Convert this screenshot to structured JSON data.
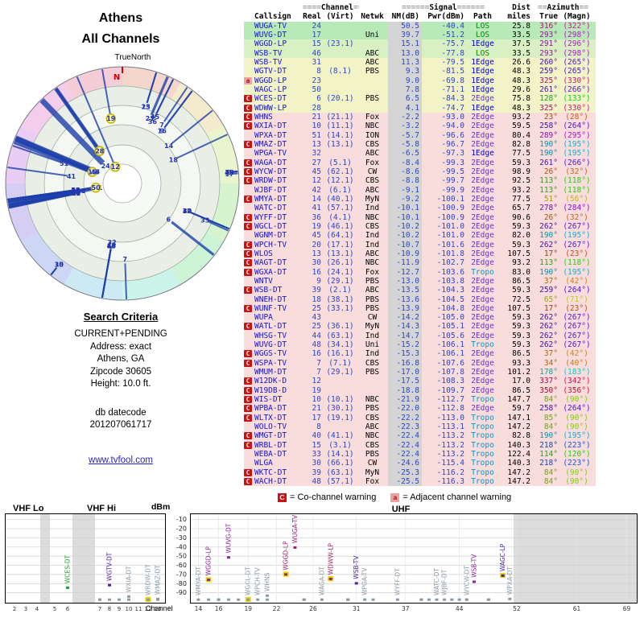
{
  "title": {
    "line1": "Athens",
    "line2": "All Channels"
  },
  "radar": {
    "true_north_label": "TrueNorth",
    "north_label": "N"
  },
  "search_criteria": {
    "heading": "Search Criteria",
    "lines": [
      "CURRENT+PENDING",
      "Address: exact",
      "Athens, GA",
      "Zipcode 30605",
      "Height: 10.0 ft."
    ]
  },
  "datecode": {
    "label": "db datecode",
    "value": "201207061717"
  },
  "link": "www.tvfool.com",
  "table": {
    "header": {
      "group_channel": "Channel",
      "channel_eq": "====",
      "group_signal": "Signal",
      "signal_eq": "======",
      "group_dist": "Dist",
      "group_azimuth": "Azimuth",
      "azimuth_eq": "==",
      "col_callsign": "Callsign",
      "col_real": "Real",
      "col_virt": "(Virt)",
      "col_netwk": "Netwk",
      "col_nm": "NM(dB)",
      "col_pwr": "Pwr(dBm)",
      "col_path": "Path",
      "col_miles": "miles",
      "col_true": "True",
      "col_magn": "(Magn)"
    }
  },
  "stations": [
    {
      "warn": "",
      "callsign": "WUGA-TV",
      "real": 24,
      "virt": "",
      "netwk": "",
      "nm": 50.5,
      "pwr": -40.4,
      "path": "LOS",
      "miles": 25.8,
      "az_true": 316,
      "az_magn": 322
    },
    {
      "warn": "",
      "callsign": "WUVG-DT",
      "real": 17,
      "virt": "",
      "netwk": "Uni",
      "nm": 39.7,
      "pwr": -51.2,
      "path": "LOS",
      "miles": 33.5,
      "az_true": 293,
      "az_magn": 298
    },
    {
      "warn": "",
      "callsign": "WGGD-LP",
      "real": 15,
      "virt": "23.1",
      "netwk": "",
      "nm": 15.1,
      "pwr": -75.7,
      "path": "1Edge",
      "miles": 37.5,
      "az_true": 291,
      "az_magn": 296
    },
    {
      "warn": "",
      "callsign": "WSB-TV",
      "real": 46,
      "virt": "",
      "netwk": "ABC",
      "nm": 13.0,
      "pwr": -77.8,
      "path": "LOS",
      "miles": 33.5,
      "az_true": 293,
      "az_magn": 298
    },
    {
      "warn": "",
      "callsign": "WSB-TV",
      "real": 31,
      "virt": "",
      "netwk": "ABC",
      "nm": 11.3,
      "pwr": -79.5,
      "path": "1Edge",
      "miles": 26.6,
      "az_true": 260,
      "az_magn": 265
    },
    {
      "warn": "",
      "callsign": "WGTV-DT",
      "real": 8,
      "virt": "8.1",
      "netwk": "PBS",
      "nm": 9.3,
      "pwr": -81.5,
      "path": "1Edge",
      "miles": 48.3,
      "az_true": 259,
      "az_magn": 265
    },
    {
      "warn": "a",
      "callsign": "WGGD-LP",
      "real": 23,
      "virt": "",
      "netwk": "",
      "nm": 9.0,
      "pwr": -69.8,
      "path": "1Edge",
      "miles": 48.3,
      "az_true": 325,
      "az_magn": 330
    },
    {
      "warn": "",
      "callsign": "WAGC-LP",
      "real": 50,
      "virt": "",
      "netwk": "",
      "nm": 7.8,
      "pwr": -71.1,
      "path": "1Edge",
      "miles": 29.6,
      "az_true": 261,
      "az_magn": 266
    },
    {
      "warn": "C",
      "callsign": "WCES-DT",
      "real": 6,
      "virt": "20.1",
      "netwk": "PBS",
      "nm": 6.5,
      "pwr": -84.3,
      "path": "2Edge",
      "miles": 75.8,
      "az_true": 128,
      "az_magn": 133
    },
    {
      "warn": "C",
      "callsign": "WDWW-LP",
      "real": 28,
      "virt": "",
      "netwk": "",
      "nm": 4.1,
      "pwr": -74.7,
      "path": "1Edge",
      "miles": 48.3,
      "az_true": 325,
      "az_magn": 330
    },
    {
      "warn": "C",
      "callsign": "WHNS",
      "real": 21,
      "virt": "21.1",
      "netwk": "Fox",
      "nm": -2.2,
      "pwr": -93.0,
      "path": "2Edge",
      "miles": 93.2,
      "az_true": 23,
      "az_magn": 28
    },
    {
      "warn": "C",
      "callsign": "WXIA-DT",
      "real": 10,
      "virt": "11.1",
      "netwk": "NBC",
      "nm": -3.2,
      "pwr": -94.0,
      "path": "2Edge",
      "miles": 59.5,
      "az_true": 258,
      "az_magn": 264
    },
    {
      "warn": "",
      "callsign": "WPXA-DT",
      "real": 51,
      "virt": "14.1",
      "netwk": "ION",
      "nm": -5.7,
      "pwr": -96.6,
      "path": "2Edge",
      "miles": 80.4,
      "az_true": 289,
      "az_magn": 295
    },
    {
      "warn": "C",
      "callsign": "WMAZ-DT",
      "real": 13,
      "virt": "13.1",
      "netwk": "CBS",
      "nm": -5.8,
      "pwr": -96.7,
      "path": "2Edge",
      "miles": 82.8,
      "az_true": 190,
      "az_magn": 195
    },
    {
      "warn": "",
      "callsign": "WPGA-TV",
      "real": 32,
      "virt": "",
      "netwk": "ABC",
      "nm": -6.5,
      "pwr": -97.3,
      "path": "1Edge",
      "miles": 77.5,
      "az_true": 190,
      "az_magn": 195
    },
    {
      "warn": "C",
      "callsign": "WAGA-DT",
      "real": 27,
      "virt": "5.1",
      "netwk": "Fox",
      "nm": -8.4,
      "pwr": -99.3,
      "path": "2Edge",
      "miles": 59.3,
      "az_true": 261,
      "az_magn": 266
    },
    {
      "warn": "C",
      "callsign": "WYCW-DT",
      "real": 45,
      "virt": "62.1",
      "netwk": "CW",
      "nm": -8.6,
      "pwr": -99.5,
      "path": "2Edge",
      "miles": 98.9,
      "az_true": 26,
      "az_magn": 32
    },
    {
      "warn": "C",
      "callsign": "WRDW-DT",
      "real": 12,
      "virt": "12.1",
      "netwk": "CBS",
      "nm": -8.8,
      "pwr": -99.7,
      "path": "2Edge",
      "miles": 92.5,
      "az_true": 113,
      "az_magn": 118
    },
    {
      "warn": "",
      "callsign": "WJBF-DT",
      "real": 42,
      "virt": "6.1",
      "netwk": "ABC",
      "nm": -9.1,
      "pwr": -99.9,
      "path": "2Edge",
      "miles": 93.2,
      "az_true": 113,
      "az_magn": 118
    },
    {
      "warn": "C",
      "callsign": "WMYA-DT",
      "real": 14,
      "virt": "40.1",
      "netwk": "MyN",
      "nm": -9.2,
      "pwr": -100.1,
      "path": "2Edge",
      "miles": 77.5,
      "az_true": 51,
      "az_magn": 56
    },
    {
      "warn": "",
      "callsign": "WATC-DT",
      "real": 41,
      "virt": "57.1",
      "netwk": "Ind",
      "nm": -10.1,
      "pwr": -100.9,
      "path": "2Edge",
      "miles": 65.7,
      "az_true": 278,
      "az_magn": 284
    },
    {
      "warn": "C",
      "callsign": "WYFF-DT",
      "real": 36,
      "virt": "4.1",
      "netwk": "NBC",
      "nm": -10.1,
      "pwr": -100.9,
      "path": "2Edge",
      "miles": 90.6,
      "az_true": 26,
      "az_magn": 32
    },
    {
      "warn": "C",
      "callsign": "WGCL-DT",
      "real": 19,
      "virt": "46.1",
      "netwk": "CBS",
      "nm": -10.2,
      "pwr": -101.0,
      "path": "2Edge",
      "miles": 59.3,
      "az_true": 262,
      "az_magn": 267
    },
    {
      "warn": "",
      "callsign": "WGNM-DT",
      "real": 45,
      "virt": "64.1",
      "netwk": "Ind",
      "nm": -10.2,
      "pwr": -101.0,
      "path": "2Edge",
      "miles": 82.0,
      "az_true": 190,
      "az_magn": 195
    },
    {
      "warn": "C",
      "callsign": "WPCH-TV",
      "real": 20,
      "virt": "17.1",
      "netwk": "Ind",
      "nm": -10.7,
      "pwr": -101.6,
      "path": "2Edge",
      "miles": 59.3,
      "az_true": 262,
      "az_magn": 267
    },
    {
      "warn": "C",
      "callsign": "WLOS",
      "real": 13,
      "virt": "13.1",
      "netwk": "ABC",
      "nm": -10.9,
      "pwr": -101.8,
      "path": "2Edge",
      "miles": 107.5,
      "az_true": 17,
      "az_magn": 23
    },
    {
      "warn": "C",
      "callsign": "WAGT-DT",
      "real": 30,
      "virt": "26.1",
      "netwk": "NBC",
      "nm": -11.9,
      "pwr": -102.7,
      "path": "2Edge",
      "miles": 93.2,
      "az_true": 113,
      "az_magn": 118
    },
    {
      "warn": "C",
      "callsign": "WGXA-DT",
      "real": 16,
      "virt": "24.1",
      "netwk": "Fox",
      "nm": -12.7,
      "pwr": -103.6,
      "path": "Tropo",
      "miles": 83.0,
      "az_true": 190,
      "az_magn": 195
    },
    {
      "warn": "",
      "callsign": "WNTV",
      "real": 9,
      "virt": "29.1",
      "netwk": "PBS",
      "nm": -13.0,
      "pwr": -103.8,
      "path": "2Edge",
      "miles": 86.5,
      "az_true": 37,
      "az_magn": 42
    },
    {
      "warn": "C",
      "callsign": "WSB-DT",
      "real": 39,
      "virt": "2.1",
      "netwk": "ABC",
      "nm": -13.5,
      "pwr": -104.3,
      "path": "2Edge",
      "miles": 59.3,
      "az_true": 259,
      "az_magn": 264
    },
    {
      "warn": "",
      "callsign": "WNEH-DT",
      "real": 18,
      "virt": "38.1",
      "netwk": "PBS",
      "nm": -13.6,
      "pwr": -104.5,
      "path": "2Edge",
      "miles": 72.5,
      "az_true": 65,
      "az_magn": 71
    },
    {
      "warn": "C",
      "callsign": "WUNF-TV",
      "real": 25,
      "virt": "33.1",
      "netwk": "PBS",
      "nm": -13.9,
      "pwr": -104.8,
      "path": "2Edge",
      "miles": 107.5,
      "az_true": 17,
      "az_magn": 23
    },
    {
      "warn": "",
      "callsign": "WUPA",
      "real": 43,
      "virt": "",
      "netwk": "CW",
      "nm": -14.2,
      "pwr": -105.0,
      "path": "2Edge",
      "miles": 59.3,
      "az_true": 262,
      "az_magn": 267
    },
    {
      "warn": "C",
      "callsign": "WATL-DT",
      "real": 25,
      "virt": "36.1",
      "netwk": "MyN",
      "nm": -14.3,
      "pwr": -105.1,
      "path": "2Edge",
      "miles": 59.3,
      "az_true": 262,
      "az_magn": 267
    },
    {
      "warn": "",
      "callsign": "WHSG-TV",
      "real": 44,
      "virt": "63.1",
      "netwk": "Ind",
      "nm": -14.7,
      "pwr": -105.6,
      "path": "2Edge",
      "miles": 59.3,
      "az_true": 262,
      "az_magn": 267
    },
    {
      "warn": "",
      "callsign": "WUVG-DT",
      "real": 48,
      "virt": "34.1",
      "netwk": "Uni",
      "nm": -15.2,
      "pwr": -106.1,
      "path": "Tropo",
      "miles": 59.3,
      "az_true": 262,
      "az_magn": 267
    },
    {
      "warn": "C",
      "callsign": "WGGS-TV",
      "real": 16,
      "virt": "16.1",
      "netwk": "Ind",
      "nm": -15.3,
      "pwr": -106.1,
      "path": "2Edge",
      "miles": 86.5,
      "az_true": 37,
      "az_magn": 42
    },
    {
      "warn": "C",
      "callsign": "WSPA-TV",
      "real": 7,
      "virt": "7.1",
      "netwk": "CBS",
      "nm": -16.8,
      "pwr": -107.6,
      "path": "2Edge",
      "miles": 93.3,
      "az_true": 34,
      "az_magn": 40
    },
    {
      "warn": "",
      "callsign": "WMUM-DT",
      "real": 7,
      "virt": "29.1",
      "netwk": "PBS",
      "nm": -17.0,
      "pwr": -107.8,
      "path": "2Edge",
      "miles": 101.2,
      "az_true": 178,
      "az_magn": 183
    },
    {
      "warn": "C",
      "callsign": "W12DK-D",
      "real": 12,
      "virt": "",
      "netwk": "",
      "nm": -17.5,
      "pwr": -108.3,
      "path": "2Edge",
      "miles": 17.0,
      "az_true": 337,
      "az_magn": 342
    },
    {
      "warn": "C",
      "callsign": "W19DB-D",
      "real": 19,
      "virt": "",
      "netwk": "",
      "nm": -18.8,
      "pwr": -109.7,
      "path": "2Edge",
      "miles": 86.5,
      "az_true": 350,
      "az_magn": 356
    },
    {
      "warn": "C",
      "callsign": "WIS-DT",
      "real": 10,
      "virt": "10.1",
      "netwk": "NBC",
      "nm": -21.9,
      "pwr": -112.7,
      "path": "Tropo",
      "miles": 147.7,
      "az_true": 84,
      "az_magn": 90
    },
    {
      "warn": "C",
      "callsign": "WPBA-DT",
      "real": 21,
      "virt": "30.1",
      "netwk": "PBS",
      "nm": -22.0,
      "pwr": -112.8,
      "path": "2Edge",
      "miles": 59.7,
      "az_true": 258,
      "az_magn": 264
    },
    {
      "warn": "C",
      "callsign": "WLTX-DT",
      "real": 17,
      "virt": "19.1",
      "netwk": "CBS",
      "nm": -22.2,
      "pwr": -113.0,
      "path": "Tropo",
      "miles": 147.1,
      "az_true": 85,
      "az_magn": 90
    },
    {
      "warn": "",
      "callsign": "WOLO-TV",
      "real": 8,
      "virt": "",
      "netwk": "ABC",
      "nm": -22.3,
      "pwr": -113.1,
      "path": "Tropo",
      "miles": 147.2,
      "az_true": 84,
      "az_magn": 90
    },
    {
      "warn": "C",
      "callsign": "WMGT-DT",
      "real": 40,
      "virt": "41.1",
      "netwk": "NBC",
      "nm": -22.4,
      "pwr": -113.2,
      "path": "Tropo",
      "miles": 82.8,
      "az_true": 190,
      "az_magn": 195
    },
    {
      "warn": "C",
      "callsign": "WRBL-DT",
      "real": 15,
      "virt": "3.1",
      "netwk": "CBS",
      "nm": -22.4,
      "pwr": -113.2,
      "path": "Tropo",
      "miles": 140.3,
      "az_true": 218,
      "az_magn": 223
    },
    {
      "warn": "",
      "callsign": "WEBA-DT",
      "real": 33,
      "virt": "14.1",
      "netwk": "PBS",
      "nm": -22.4,
      "pwr": -113.2,
      "path": "Tropo",
      "miles": 122.4,
      "az_true": 114,
      "az_magn": 120
    },
    {
      "warn": "",
      "callsign": "WLGA",
      "real": 30,
      "virt": "66.1",
      "netwk": "CW",
      "nm": -24.6,
      "pwr": -115.4,
      "path": "Tropo",
      "miles": 140.3,
      "az_true": 218,
      "az_magn": 223
    },
    {
      "warn": "C",
      "callsign": "WKTC-DT",
      "real": 39,
      "virt": "63.1",
      "netwk": "MyN",
      "nm": -25.3,
      "pwr": -116.2,
      "path": "Tropo",
      "miles": 147.2,
      "az_true": 84,
      "az_magn": 90
    },
    {
      "warn": "C",
      "callsign": "WACH-DT",
      "real": 48,
      "virt": "57.1",
      "netwk": "Fox",
      "nm": -25.5,
      "pwr": -116.3,
      "path": "Tropo",
      "miles": 147.2,
      "az_true": 84,
      "az_magn": 90
    }
  ],
  "legend": {
    "c_symbol": "C",
    "c_text": "= Co-channel warning",
    "a_symbol": "a",
    "a_text": "= Adjacent channel warning"
  },
  "bottom_chart": {
    "vhf_lo": "VHF Lo",
    "vhf_hi": "VHF Hi",
    "uhf": "UHF",
    "dbm": "dBm",
    "channel_label": "Channel",
    "dbm_ticks": [
      -10,
      -20,
      -30,
      -40,
      -50,
      -60,
      -70,
      -80,
      -90
    ],
    "vhf_ticks": [
      2,
      3,
      4,
      5,
      6,
      7,
      8,
      9,
      10,
      11,
      12,
      13
    ],
    "uhf_ticks": [
      14,
      16,
      19,
      22,
      26,
      31,
      37,
      44,
      52,
      61,
      69
    ]
  },
  "colors": {
    "link": "#2222cc",
    "callsign": "#1515cc",
    "number": "#2a46cc",
    "warn_c_bg": "#cc1111",
    "warn_a_bg": "#f0a0a0",
    "bar": "#1d3faa",
    "lp_highlight": "#e8d800",
    "path": {
      "LOS": "#008800",
      "1Edge": "#0000dd",
      "2Edge": "#6633cc",
      "Tropo": "#0099cc"
    }
  }
}
